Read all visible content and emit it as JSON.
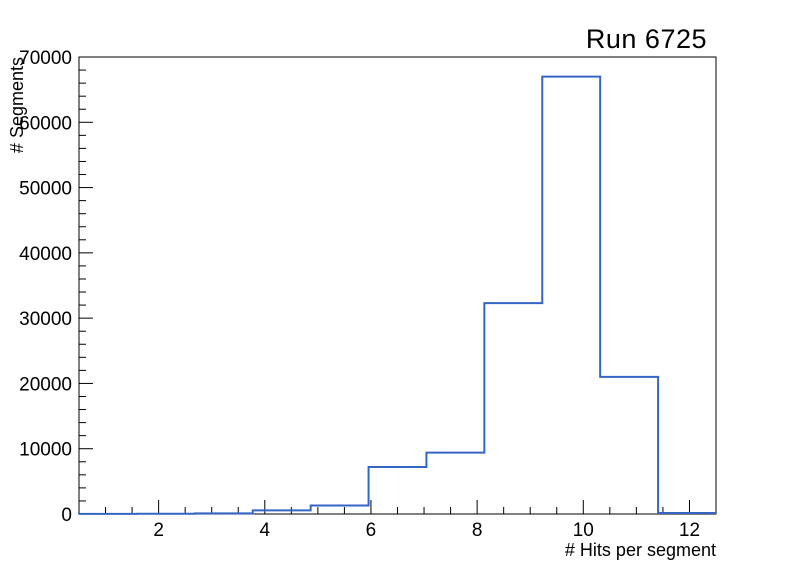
{
  "page": {
    "title": "Run 6725"
  },
  "chart_data": {
    "type": "bar",
    "subtype": "step-histogram",
    "title": "Run 6725",
    "xlabel": "# Hits per segment",
    "ylabel": "# Segments",
    "xlim": [
      0.5,
      12.5
    ],
    "ylim": [
      0,
      70000
    ],
    "n_bins": 11,
    "bin_edges": [
      0.5,
      1.591,
      2.682,
      3.773,
      4.864,
      5.955,
      7.045,
      8.136,
      9.227,
      10.318,
      11.409,
      12.5
    ],
    "counts": [
      10,
      30,
      100,
      550,
      1300,
      7200,
      9400,
      32300,
      67000,
      21000,
      150
    ],
    "x_major_ticks": [
      2,
      4,
      6,
      8,
      10,
      12
    ],
    "x_minor_tick_step": 0.5,
    "y_major_ticks": [
      0,
      10000,
      20000,
      30000,
      40000,
      50000,
      60000,
      70000
    ],
    "y_minor_tick_step": 2000,
    "grid": false,
    "legend": false,
    "line_color": "#3666c4",
    "axis_color": "#000000",
    "background_color": "#ffffff"
  }
}
